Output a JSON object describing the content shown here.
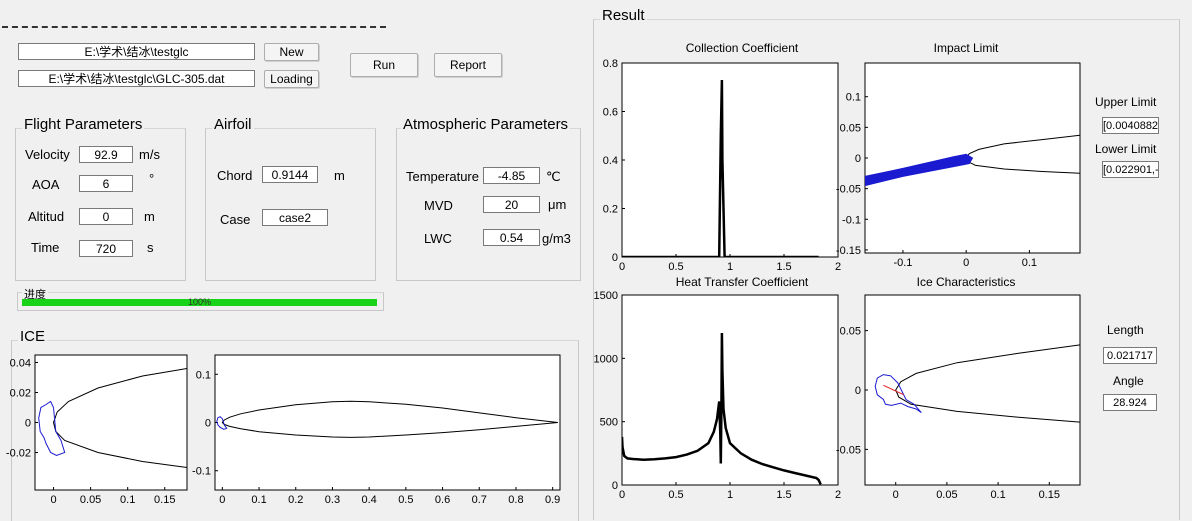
{
  "colors": {
    "progress": "#19d319",
    "accent_blue": "#1a1ad0",
    "accent_red": "#e02020",
    "background": "#f0f0f0"
  },
  "files": {
    "work_dir": "E:\\学术\\结冰\\testglc",
    "airfoil_file": "E:\\学术\\结冰\\testglc\\GLC-305.dat"
  },
  "buttons": {
    "new": "New",
    "loading": "Loading",
    "run": "Run",
    "report": "Report"
  },
  "flight": {
    "title": "Flight Parameters",
    "velocity": {
      "label": "Velocity",
      "value": "92.9",
      "unit": "m/s"
    },
    "aoa": {
      "label": "AOA",
      "value": "6",
      "unit": "°"
    },
    "altitude": {
      "label": "Altitud",
      "value": "0",
      "unit": "m"
    },
    "time": {
      "label": "Time",
      "value": "720",
      "unit": "s"
    }
  },
  "airfoil": {
    "title": "Airfoil",
    "chord": {
      "label": "Chord",
      "value": "0.9144",
      "unit": "m"
    },
    "case": {
      "label": "Case",
      "value": "case2"
    }
  },
  "atmos": {
    "title": "Atmospheric Parameters",
    "temperature": {
      "label": "Temperature",
      "value": "-4.85",
      "unit": "℃"
    },
    "mvd": {
      "label": "MVD",
      "value": "20",
      "unit": "μm"
    },
    "lwc": {
      "label": "LWC",
      "value": "0.54",
      "unit": "g/m3"
    }
  },
  "progress": {
    "title": "进度",
    "percent": 100,
    "label": "100%"
  },
  "ice": {
    "title": "ICE"
  },
  "result": {
    "title": "Result",
    "upper_limit": {
      "label": "Upper Limit",
      "value": "[0.0040882"
    },
    "lower_limit": {
      "label": "Lower Limit",
      "value": "[0.022901,-"
    },
    "length": {
      "label": "Length",
      "value": "0.021717"
    },
    "angle": {
      "label": "Angle",
      "value": "28.924"
    }
  },
  "chart_data": [
    {
      "id": "collection",
      "type": "line",
      "title": "Collection Coefficient",
      "xlim": [
        0,
        2
      ],
      "ylim": [
        0,
        0.8
      ],
      "xticks": [
        0,
        0.5,
        1,
        1.5,
        2
      ],
      "xtick_labels": [
        "0",
        "0.5",
        "1",
        "1.5",
        "2"
      ],
      "yticks": [
        0,
        0.2,
        0.4,
        0.6,
        0.8
      ],
      "ytick_labels": [
        "0",
        "0.2",
        "0.4",
        "0.6",
        "0.8"
      ],
      "series": [
        {
          "color": "#000000",
          "x": [
            0,
            0.85,
            0.9,
            0.915,
            0.925,
            0.93,
            0.95,
            1.0,
            1.82
          ],
          "y": [
            0,
            0,
            0,
            0.5,
            0.73,
            0.4,
            0,
            0,
            0
          ]
        }
      ]
    },
    {
      "id": "heat",
      "type": "line",
      "title": "Heat Transfer Coefficient",
      "xlim": [
        0,
        2
      ],
      "ylim": [
        0,
        1500
      ],
      "xticks": [
        0,
        0.5,
        1,
        1.5,
        2
      ],
      "xtick_labels": [
        "0",
        "0.5",
        "1",
        "1.5",
        "2"
      ],
      "yticks": [
        0,
        500,
        1000,
        1500
      ],
      "ytick_labels": [
        "0",
        "500",
        "1000",
        "1500"
      ],
      "series": [
        {
          "color": "#000000",
          "x": [
            0,
            0.005,
            0.02,
            0.05,
            0.1,
            0.2,
            0.3,
            0.4,
            0.5,
            0.6,
            0.7,
            0.8,
            0.85,
            0.88,
            0.9,
            0.91,
            0.915,
            0.92,
            0.925,
            0.93,
            0.94,
            0.96,
            1.0,
            1.1,
            1.2,
            1.3,
            1.4,
            1.5,
            1.6,
            1.7,
            1.8,
            1.82,
            1.84
          ],
          "y": [
            380,
            300,
            230,
            210,
            205,
            200,
            203,
            210,
            220,
            240,
            270,
            330,
            420,
            520,
            660,
            400,
            170,
            600,
            1200,
            900,
            600,
            450,
            330,
            250,
            200,
            165,
            140,
            115,
            95,
            75,
            55,
            40,
            5
          ]
        }
      ]
    },
    {
      "id": "impact",
      "type": "line",
      "title": "Impact Limit",
      "xlim": [
        -0.16,
        0.18
      ],
      "ylim": [
        -0.155,
        0.155
      ],
      "xticks": [
        -0.1,
        0,
        0.1
      ],
      "xtick_labels": [
        "-0.1",
        "0",
        "0.1"
      ],
      "yticks": [
        -0.15,
        -0.1,
        -0.05,
        0,
        0.05,
        0.1
      ],
      "ytick_labels": [
        "-0.15",
        "-0.1",
        "-0.05",
        "0",
        "0.05",
        "0.1"
      ],
      "series": [
        {
          "color": "#000000",
          "x": [
            0.18,
            0.12,
            0.06,
            0.02,
            0.005,
            0,
            0.003,
            0.015,
            0.06,
            0.12,
            0.18
          ],
          "y": [
            0.037,
            0.03,
            0.023,
            0.014,
            0.007,
            0,
            -0.006,
            -0.012,
            -0.018,
            -0.022,
            -0.025
          ]
        },
        {
          "color": "#1a1ad0",
          "fill": true,
          "x": [
            -0.16,
            -0.1,
            -0.05,
            -0.02,
            0,
            0.01,
            0.005,
            -0.02,
            -0.05,
            -0.1,
            -0.16
          ],
          "y": [
            -0.03,
            -0.017,
            -0.005,
            0.002,
            0.006,
            0.0,
            -0.009,
            -0.014,
            -0.02,
            -0.03,
            -0.045
          ]
        }
      ]
    },
    {
      "id": "icechar",
      "type": "line",
      "title": "Ice Characteristics",
      "xlim": [
        -0.03,
        0.18
      ],
      "ylim": [
        -0.08,
        0.08
      ],
      "xticks": [
        0,
        0.05,
        0.1,
        0.15
      ],
      "xtick_labels": [
        "0",
        "0.05",
        "0.1",
        "0.15"
      ],
      "yticks": [
        -0.05,
        0,
        0.05
      ],
      "ytick_labels": [
        "-0.05",
        "0",
        "0.05"
      ],
      "series": [
        {
          "color": "#000000",
          "x": [
            0.18,
            0.12,
            0.06,
            0.02,
            0.005,
            0,
            0.003,
            0.015,
            0.06,
            0.12,
            0.18
          ],
          "y": [
            0.038,
            0.031,
            0.023,
            0.014,
            0.007,
            0,
            -0.006,
            -0.012,
            -0.018,
            -0.023,
            -0.027
          ]
        },
        {
          "color": "#1a1ad0",
          "x": [
            0.002,
            -0.005,
            -0.012,
            -0.018,
            -0.02,
            -0.018,
            -0.012,
            -0.01,
            -0.004,
            0.005,
            0.012,
            0.02,
            0.025,
            0.018,
            0.01,
            0.002
          ],
          "y": [
            0.006,
            0.012,
            0.013,
            0.01,
            0.003,
            -0.004,
            -0.008,
            -0.012,
            -0.013,
            -0.011,
            -0.014,
            -0.016,
            -0.019,
            -0.012,
            -0.008,
            0.006
          ]
        },
        {
          "color": "#e02020",
          "x": [
            -0.012,
            0.008
          ],
          "y": [
            0.004,
            -0.004
          ]
        }
      ]
    },
    {
      "id": "ice_zoom",
      "type": "line",
      "title": "",
      "xlim": [
        -0.025,
        0.18
      ],
      "ylim": [
        -0.045,
        0.045
      ],
      "xticks": [
        0,
        0.05,
        0.1,
        0.15
      ],
      "xtick_labels": [
        "0",
        "0.05",
        "0.1",
        "0.15"
      ],
      "yticks": [
        -0.02,
        0,
        0.02,
        0.04
      ],
      "ytick_labels": [
        "-0.02",
        "0",
        "0.02",
        "0.04"
      ],
      "series": [
        {
          "color": "#000000",
          "x": [
            0.18,
            0.12,
            0.06,
            0.02,
            0.005,
            0,
            0.003,
            0.015,
            0.06,
            0.12,
            0.18
          ],
          "y": [
            0.036,
            0.031,
            0.023,
            0.014,
            0.007,
            0,
            -0.006,
            -0.012,
            -0.02,
            -0.026,
            -0.03
          ]
        },
        {
          "color": "#1a1ad0",
          "x": [
            0,
            -0.004,
            -0.01,
            -0.017,
            -0.02,
            -0.018,
            -0.013,
            -0.01,
            -0.004,
            0.004,
            0.015,
            0.01,
            0.003,
            0
          ],
          "y": [
            0.01,
            0.014,
            0.012,
            0.01,
            0.003,
            -0.006,
            -0.01,
            -0.014,
            -0.02,
            -0.022,
            -0.02,
            -0.012,
            -0.006,
            0.01
          ]
        }
      ]
    },
    {
      "id": "ice_full",
      "type": "line",
      "title": "",
      "xlim": [
        -0.02,
        0.92
      ],
      "ylim": [
        -0.14,
        0.14
      ],
      "xticks": [
        0,
        0.1,
        0.2,
        0.3,
        0.4,
        0.5,
        0.6,
        0.7,
        0.8,
        0.9
      ],
      "xtick_labels": [
        "0",
        "0.1",
        "0.2",
        "0.3",
        "0.4",
        "0.5",
        "0.6",
        "0.7",
        "0.8",
        "0.9"
      ],
      "yticks": [
        -0.1,
        0,
        0.1
      ],
      "ytick_labels": [
        "-0.1",
        "0",
        "0.1"
      ],
      "series": [
        {
          "color": "#000000",
          "x": [
            0.9144,
            0.8,
            0.7,
            0.6,
            0.5,
            0.4,
            0.35,
            0.3,
            0.2,
            0.1,
            0.05,
            0.02,
            0.005,
            0,
            0.005,
            0.02,
            0.05,
            0.1,
            0.2,
            0.3,
            0.35,
            0.4,
            0.5,
            0.6,
            0.7,
            0.8,
            0.9144
          ],
          "y": [
            0,
            0.01,
            0.02,
            0.03,
            0.038,
            0.043,
            0.044,
            0.043,
            0.037,
            0.026,
            0.018,
            0.011,
            0.005,
            0,
            -0.004,
            -0.008,
            -0.013,
            -0.019,
            -0.026,
            -0.03,
            -0.031,
            -0.03,
            -0.026,
            -0.021,
            -0.015,
            -0.008,
            0
          ]
        },
        {
          "color": "#1a1ad0",
          "x": [
            0,
            -0.006,
            -0.012,
            -0.015,
            -0.012,
            -0.006,
            0.004,
            0.012,
            0.006,
            0
          ],
          "y": [
            0.008,
            0.012,
            0.01,
            0.002,
            -0.005,
            -0.01,
            -0.014,
            -0.012,
            -0.006,
            0.008
          ]
        }
      ]
    }
  ]
}
